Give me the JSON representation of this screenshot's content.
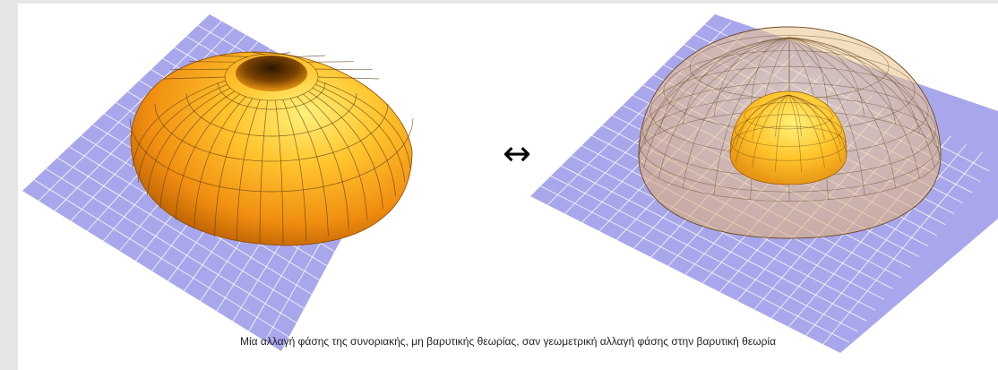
{
  "figure": {
    "arrow_symbol": "↔",
    "left_panel": {
      "icon": "torus-on-grid-icon"
    },
    "right_panel": {
      "icon": "nested-hemispheres-on-grid-icon"
    }
  },
  "caption": "Μία αλλαγή φάσης της συνοριακής, μη βαρυτικής θεωρίας, σαν γεωμετρική αλλαγή φάσης στην βαρυτική θεωρία",
  "colors": {
    "grid_fill": "#a9a7ec",
    "grid_line": "#ffffff",
    "orange_light": "#ffd85a",
    "orange_mid": "#f4a11a",
    "orange_dark": "#b45a00",
    "mesh_line": "#5a3a10",
    "background": "#e6e6e6",
    "panel": "#ffffff"
  }
}
